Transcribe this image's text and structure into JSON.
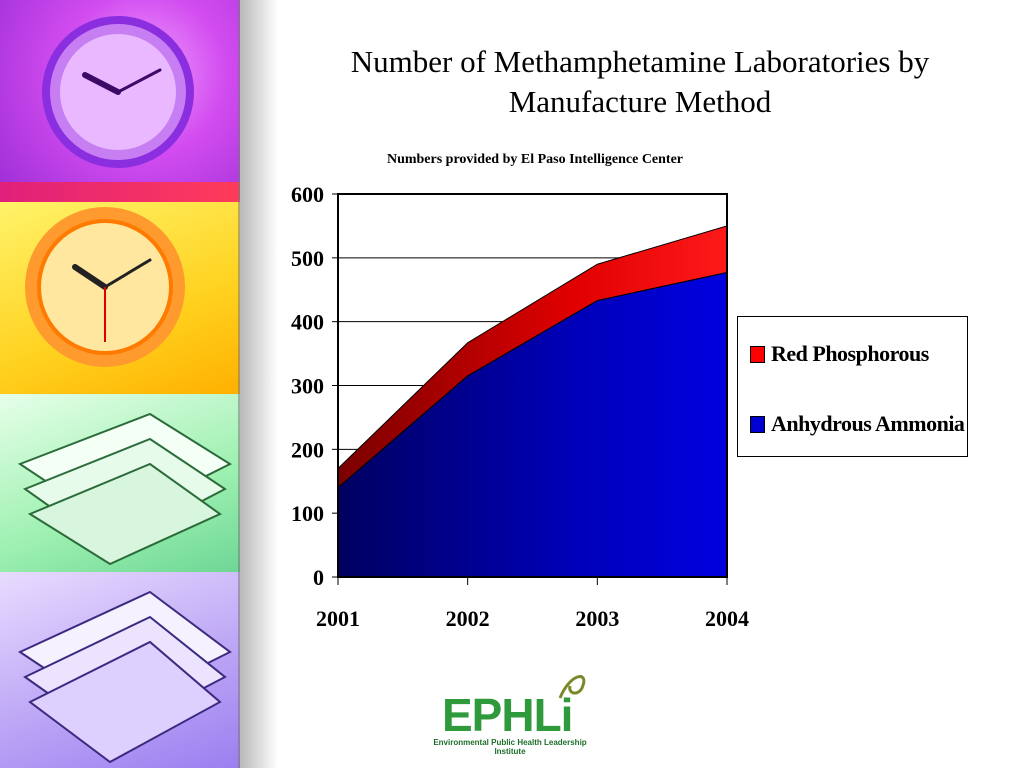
{
  "slide": {
    "title_line1": "Number of Methamphetamine Laboratories by",
    "title_line2": "Manufacture Method",
    "subtitle": "Numbers provided by El Paso Intelligence Center"
  },
  "logo": {
    "text": "EPHLi",
    "subtext": "Environmental Public Health Leadership Institute",
    "color": "#2e9a3c"
  },
  "chart_data": {
    "type": "area",
    "stacked": true,
    "title": "Number of Methamphetamine Laboratories by Manufacture Method",
    "subtitle": "Numbers provided by El Paso Intelligence Center",
    "x": [
      "2001",
      "2002",
      "2003",
      "2004"
    ],
    "series": [
      {
        "name": "Anhydrous Ammonia",
        "color": "#0000d0",
        "values": [
          140,
          315,
          433,
          477
        ]
      },
      {
        "name": "Red Phosphorous",
        "color": "#ff0000",
        "values": [
          30,
          52,
          57,
          73
        ]
      }
    ],
    "ylim": [
      0,
      600
    ],
    "yticks": [
      "0",
      "100",
      "200",
      "300",
      "400",
      "500",
      "600"
    ],
    "grid": true,
    "legend_position": "right"
  }
}
